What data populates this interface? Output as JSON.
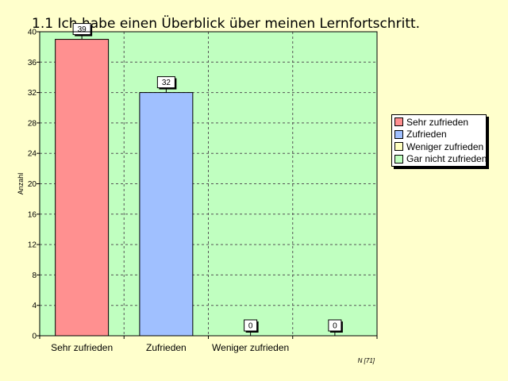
{
  "title": "1.1 Ich habe einen Überblick über meinen Lernfortschritt.",
  "note": "N [71]",
  "colors": {
    "plot_background": "#c0ffc0",
    "page_background": "#ffffcc",
    "grid": "#555555"
  },
  "legend": [
    {
      "label": "Sehr zufrieden",
      "color": "#ff9090"
    },
    {
      "label": "Zufrieden",
      "color": "#a0c0ff"
    },
    {
      "label": "Weniger zufrieden",
      "color": "#ffffc0"
    },
    {
      "label": "Gar nicht zufrieden",
      "color": "#c0ffc0"
    }
  ],
  "chart_data": {
    "type": "bar",
    "title": "1.1 Ich habe einen Überblick über meinen Lernfortschritt.",
    "ylabel": "Anzahl",
    "xlabel": "",
    "categories": [
      "Sehr zufrieden",
      "Zufrieden",
      "Weniger zufrieden",
      "Gar nicht zufrieden"
    ],
    "category_labels_shown": [
      "Sehr zufrieden",
      "Zufrieden",
      "Weniger zufrieden",
      ""
    ],
    "values": [
      39,
      32,
      0,
      0
    ],
    "data_labels": [
      "39",
      "32",
      "0",
      "0"
    ],
    "bar_colors": [
      "#ff9090",
      "#a0c0ff",
      "#ffffc0",
      "#c0ffc0"
    ],
    "ylim": [
      0,
      40
    ],
    "yticks": [
      0,
      4,
      8,
      12,
      16,
      20,
      24,
      28,
      32,
      36,
      40
    ],
    "grid": true,
    "legend_position": "right"
  }
}
